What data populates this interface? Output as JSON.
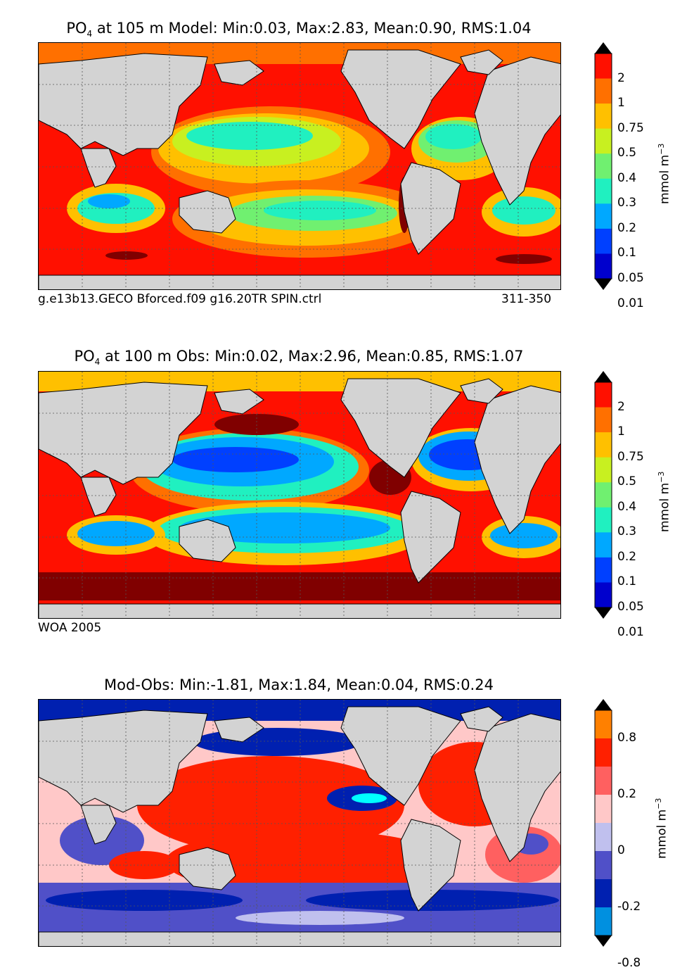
{
  "chart_data": [
    {
      "type": "heatmap",
      "title_prefix": "PO",
      "title_sub": "4",
      "title_rest": " at 105 m Model: Min:0.03, Max:2.83, Mean:0.90, RMS:1.04",
      "caption_left": "g.e13b13.GECO Bforced.f09 g16.20TR SPIN.ctrl",
      "caption_right": "311-350",
      "colorbar_label": "mmol m",
      "colorbar_exp": "−3",
      "colorbar_ticks": [
        "2",
        "1",
        "0.75",
        "0.5",
        "0.4",
        "0.3",
        "0.2",
        "0.1",
        "0.05",
        "0.01"
      ],
      "colors": [
        "#000080",
        "#0000cd",
        "#0040ff",
        "#00a8ff",
        "#20f0c0",
        "#70f070",
        "#c8f020",
        "#ffc000",
        "#ff7000",
        "#ff1000",
        "#800000"
      ]
    },
    {
      "type": "heatmap",
      "title_prefix": "PO",
      "title_sub": "4",
      "title_rest": " at 100 m Obs: Min:0.02, Max:2.96, Mean:0.85, RMS:1.07",
      "caption_left": "WOA 2005",
      "colorbar_label": "mmol m",
      "colorbar_exp": "−3",
      "colorbar_ticks": [
        "2",
        "1",
        "0.75",
        "0.5",
        "0.4",
        "0.3",
        "0.2",
        "0.1",
        "0.05",
        "0.01"
      ],
      "colors": [
        "#000080",
        "#0000cd",
        "#0040ff",
        "#00a8ff",
        "#20f0c0",
        "#70f070",
        "#c8f020",
        "#ffc000",
        "#ff7000",
        "#ff1000",
        "#800000"
      ]
    },
    {
      "type": "heatmap",
      "title": "Mod-Obs: Min:-1.81, Max:1.84, Mean:0.04, RMS:0.24",
      "colorbar_label": "mmol m",
      "colorbar_exp": "−3",
      "colorbar_ticks": [
        "0.8",
        "0.2",
        "0",
        "-0.2",
        "-0.8"
      ],
      "colors": [
        "#00ffff",
        "#0090e0",
        "#0020b0",
        "#5050c8",
        "#c0c0ee",
        "#ffc8c8",
        "#ff6060",
        "#ff2000",
        "#ff8000",
        "#ffff00"
      ]
    }
  ]
}
